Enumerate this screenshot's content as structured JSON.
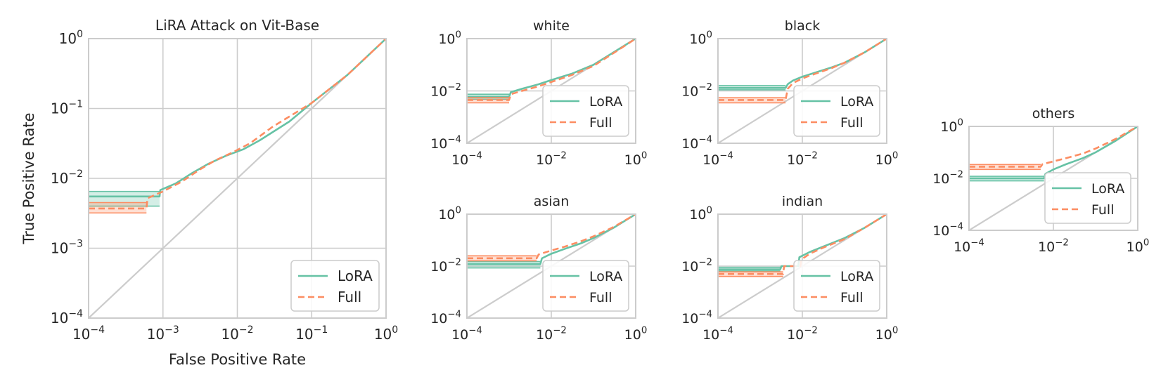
{
  "colors": {
    "lora": "#66c2a5",
    "full": "#fc8d62",
    "grid": "#cccccc",
    "diag": "#cccccc",
    "frame": "#cccccc",
    "text": "#262626"
  },
  "legend": {
    "lora": "LoRA",
    "full": "Full"
  },
  "chart_data": [
    {
      "id": "main",
      "type": "line",
      "scale": "log-log",
      "title": "LiRA Attack on Vit-Base",
      "xlabel": "False Positive Rate",
      "ylabel": "True Positive Rate",
      "xlim": [
        0.0001,
        1
      ],
      "ylim": [
        0.0001,
        1
      ],
      "xtick_exponents": [
        -4,
        -3,
        -2,
        -1,
        0
      ],
      "ytick_exponents": [
        -4,
        -3,
        -2,
        -1,
        0
      ],
      "legend_position": "lower-right",
      "series": [
        {
          "name": "LoRA",
          "style": "solid",
          "x": [
            0.0001,
            0.0009,
            0.00092,
            0.0015,
            0.0025,
            0.004,
            0.007,
            0.012,
            0.02,
            0.05,
            0.1,
            0.3,
            1
          ],
          "y": [
            0.0055,
            0.0055,
            0.0068,
            0.0085,
            0.012,
            0.016,
            0.021,
            0.026,
            0.035,
            0.065,
            0.12,
            0.3,
            1
          ],
          "band": [
            0.004,
            0.0065
          ]
        },
        {
          "name": "Full",
          "style": "dashed",
          "x": [
            0.0001,
            0.0006,
            0.00062,
            0.001,
            0.0018,
            0.003,
            0.005,
            0.009,
            0.015,
            0.03,
            0.1,
            0.3,
            1
          ],
          "y": [
            0.0037,
            0.0037,
            0.0052,
            0.0065,
            0.009,
            0.013,
            0.018,
            0.024,
            0.032,
            0.055,
            0.12,
            0.3,
            1
          ],
          "band": [
            0.0032,
            0.0045
          ]
        }
      ]
    },
    {
      "id": "white",
      "type": "line",
      "scale": "log-log",
      "title": "white",
      "xlim": [
        0.0001,
        1
      ],
      "ylim": [
        0.0001,
        1
      ],
      "xtick_exponents": [
        -4,
        -2,
        0
      ],
      "ytick_exponents": [
        -4,
        -2,
        0
      ],
      "legend_position": "lower-right",
      "series": [
        {
          "name": "LoRA",
          "style": "solid",
          "x": [
            0.0001,
            0.001,
            0.0011,
            0.002,
            0.005,
            0.01,
            0.03,
            0.1,
            0.3,
            1
          ],
          "y": [
            0.006,
            0.006,
            0.009,
            0.012,
            0.018,
            0.026,
            0.045,
            0.1,
            0.3,
            1
          ],
          "band": [
            0.0048,
            0.0075
          ]
        },
        {
          "name": "Full",
          "style": "dashed",
          "x": [
            0.0001,
            0.001,
            0.0011,
            0.002,
            0.005,
            0.01,
            0.03,
            0.1,
            0.3,
            1
          ],
          "y": [
            0.0045,
            0.0045,
            0.0075,
            0.01,
            0.015,
            0.022,
            0.04,
            0.09,
            0.28,
            1
          ],
          "band": [
            0.0035,
            0.0055
          ]
        }
      ]
    },
    {
      "id": "black",
      "type": "line",
      "scale": "log-log",
      "title": "black",
      "xlim": [
        0.0001,
        1
      ],
      "ylim": [
        0.0001,
        1
      ],
      "xtick_exponents": [
        -4,
        -2,
        0
      ],
      "ytick_exponents": [
        -4,
        -2,
        0
      ],
      "legend_position": "lower-right",
      "series": [
        {
          "name": "LoRA",
          "style": "solid",
          "x": [
            0.0001,
            0.004,
            0.0045,
            0.006,
            0.01,
            0.02,
            0.05,
            0.1,
            0.3,
            1
          ],
          "y": [
            0.013,
            0.013,
            0.018,
            0.025,
            0.035,
            0.05,
            0.08,
            0.12,
            0.3,
            1
          ],
          "band": [
            0.011,
            0.016
          ]
        },
        {
          "name": "Full",
          "style": "dashed",
          "x": [
            0.0001,
            0.004,
            0.0045,
            0.006,
            0.01,
            0.02,
            0.05,
            0.1,
            0.3,
            1
          ],
          "y": [
            0.0045,
            0.0045,
            0.012,
            0.02,
            0.03,
            0.045,
            0.075,
            0.12,
            0.3,
            1
          ],
          "band": [
            0.0035,
            0.0055
          ]
        }
      ]
    },
    {
      "id": "asian",
      "type": "line",
      "scale": "log-log",
      "title": "asian",
      "xlim": [
        0.0001,
        1
      ],
      "ylim": [
        0.0001,
        1
      ],
      "xtick_exponents": [
        -4,
        -2,
        0
      ],
      "ytick_exponents": [
        -4,
        -2,
        0
      ],
      "legend_position": "lower-right",
      "series": [
        {
          "name": "LoRA",
          "style": "solid",
          "x": [
            0.0001,
            0.0055,
            0.006,
            0.01,
            0.02,
            0.05,
            0.1,
            0.3,
            1
          ],
          "y": [
            0.012,
            0.012,
            0.02,
            0.03,
            0.045,
            0.075,
            0.12,
            0.3,
            1
          ],
          "band": [
            0.0085,
            0.015
          ]
        },
        {
          "name": "Full",
          "style": "dashed",
          "x": [
            0.0001,
            0.0045,
            0.005,
            0.01,
            0.02,
            0.05,
            0.1,
            0.3,
            1
          ],
          "y": [
            0.02,
            0.02,
            0.028,
            0.04,
            0.055,
            0.09,
            0.14,
            0.32,
            1
          ],
          "band": [
            0.016,
            0.025
          ]
        }
      ]
    },
    {
      "id": "indian",
      "type": "line",
      "scale": "log-log",
      "title": "indian",
      "xlim": [
        0.0001,
        1
      ],
      "ylim": [
        0.0001,
        1
      ],
      "xtick_exponents": [
        -4,
        -2,
        0
      ],
      "ytick_exponents": [
        -4,
        -2,
        0
      ],
      "legend_position": "lower-right",
      "series": [
        {
          "name": "LoRA",
          "style": "solid",
          "x": [
            0.0001,
            0.003,
            0.0032,
            0.008,
            0.0085,
            0.015,
            0.03,
            0.1,
            0.3,
            1
          ],
          "y": [
            0.0075,
            0.0075,
            0.01,
            0.01,
            0.022,
            0.035,
            0.055,
            0.12,
            0.3,
            1
          ],
          "band": [
            0.0065,
            0.009
          ]
        },
        {
          "name": "Full",
          "style": "dashed",
          "x": [
            0.0001,
            0.0035,
            0.0037,
            0.009,
            0.0095,
            0.015,
            0.03,
            0.1,
            0.3,
            1
          ],
          "y": [
            0.005,
            0.005,
            0.01,
            0.01,
            0.018,
            0.03,
            0.05,
            0.11,
            0.3,
            1
          ],
          "band": [
            0.004,
            0.006
          ]
        }
      ]
    },
    {
      "id": "others",
      "type": "line",
      "scale": "log-log",
      "title": "others",
      "xlim": [
        0.0001,
        1
      ],
      "ylim": [
        0.0001,
        1
      ],
      "xtick_exponents": [
        -4,
        -2,
        0
      ],
      "ytick_exponents": [
        -4,
        -2,
        0
      ],
      "legend_position": "lower-right",
      "series": [
        {
          "name": "LoRA",
          "style": "solid",
          "x": [
            0.0001,
            0.006,
            0.0065,
            0.01,
            0.02,
            0.05,
            0.1,
            0.3,
            1
          ],
          "y": [
            0.01,
            0.01,
            0.015,
            0.022,
            0.035,
            0.06,
            0.1,
            0.28,
            1
          ],
          "band": [
            0.008,
            0.012
          ]
        },
        {
          "name": "Full",
          "style": "dashed",
          "x": [
            0.0001,
            0.005,
            0.0055,
            0.01,
            0.02,
            0.05,
            0.1,
            0.3,
            1
          ],
          "y": [
            0.028,
            0.028,
            0.035,
            0.045,
            0.06,
            0.09,
            0.14,
            0.33,
            1
          ],
          "band": [
            0.022,
            0.034
          ]
        }
      ]
    }
  ]
}
